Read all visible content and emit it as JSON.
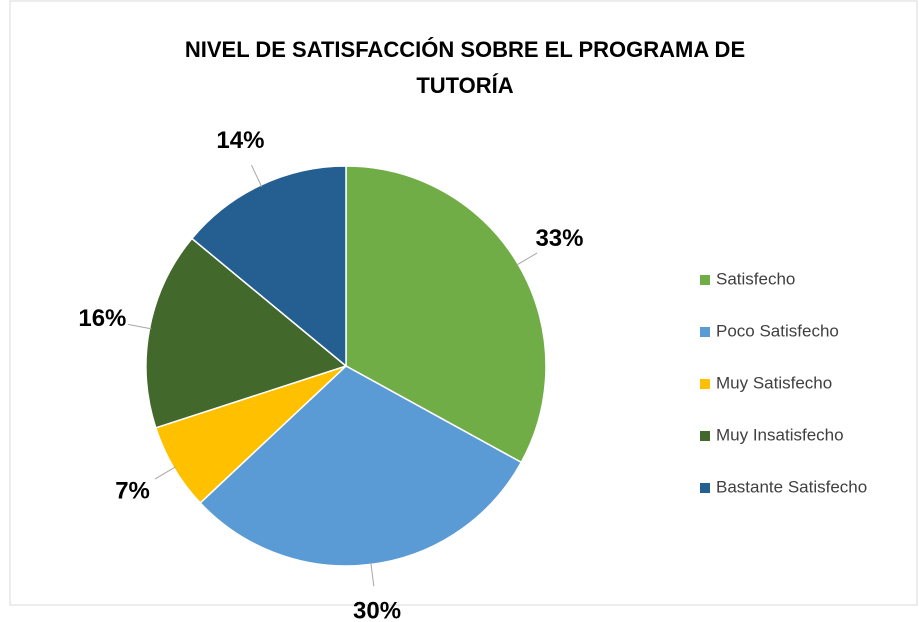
{
  "chart_data": {
    "type": "pie",
    "title": "NIVEL DE SATISFACCIÓN SOBRE EL PROGRAMA DE TUTORÍA",
    "categories": [
      "Satisfecho",
      "Poco Satisfecho",
      "Muy Satisfecho",
      "Muy Insatisfecho",
      "Bastante Satisfecho"
    ],
    "values": [
      33,
      30,
      7,
      16,
      14
    ],
    "value_labels": [
      "33%",
      "30%",
      "7%",
      "16%",
      "14%"
    ],
    "colors": [
      "#70ad47",
      "#5b9bd5",
      "#ffc000",
      "#43682b",
      "#255e91"
    ],
    "legend": "right"
  }
}
